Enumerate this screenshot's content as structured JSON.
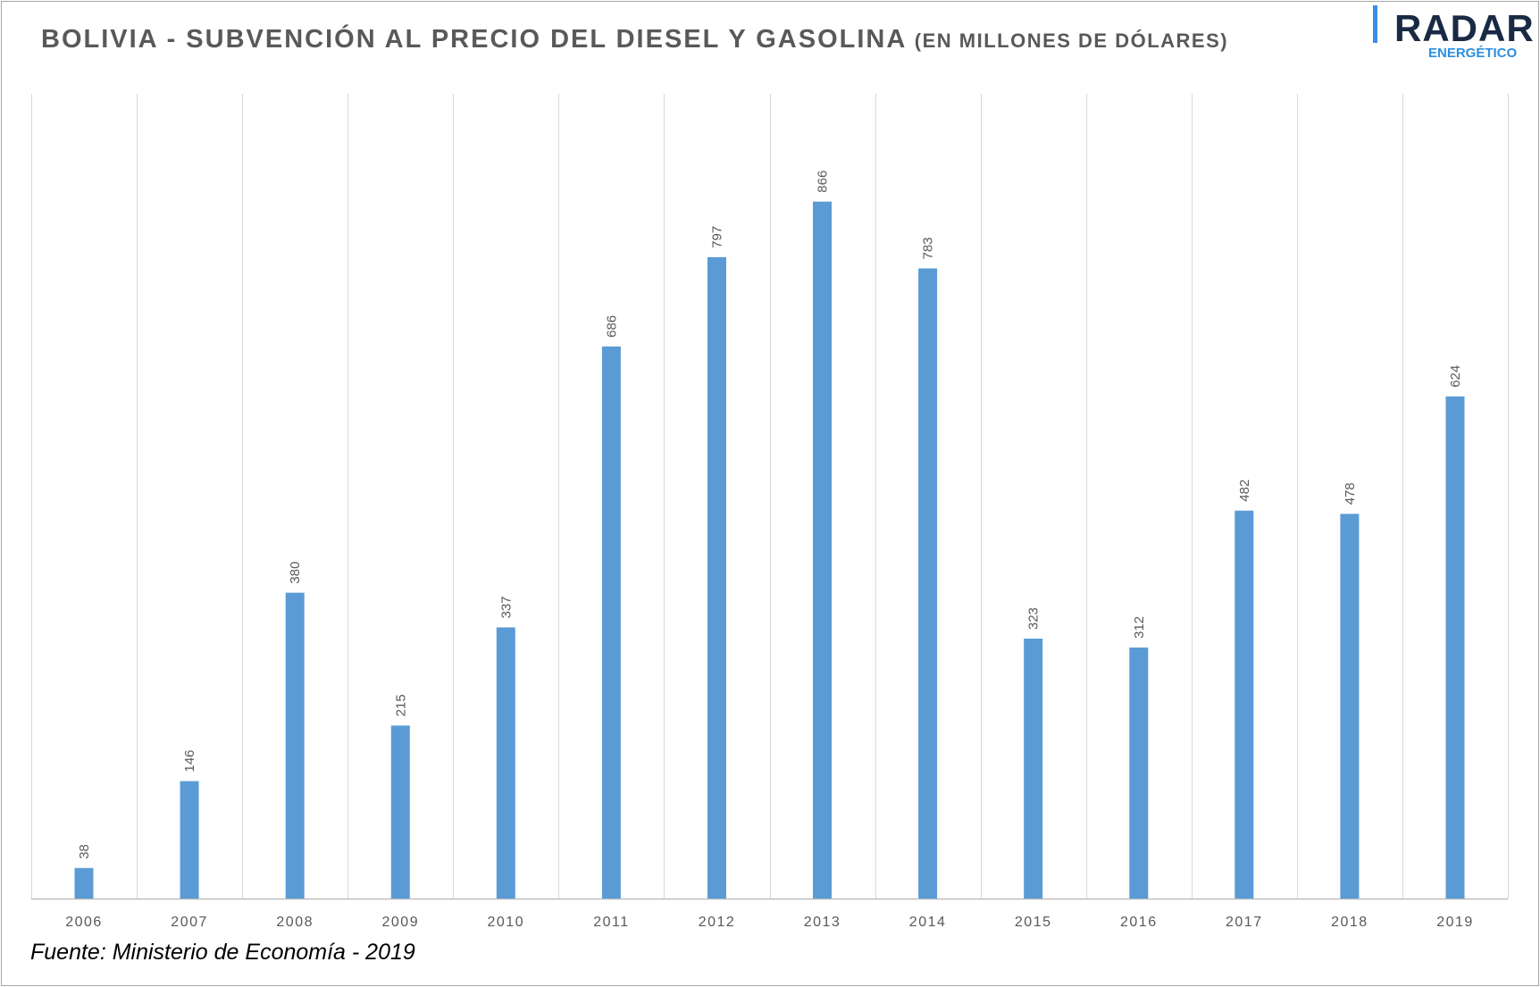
{
  "title": {
    "main": "BOLIVIA - SUBVENCIÓN AL PRECIO DEL DIESEL Y GASOLINA",
    "unit": "(EN MILLONES DE DÓLARES)"
  },
  "logo": {
    "brand": "RADAR",
    "sub": "ENERGÉTICO"
  },
  "source": "Fuente: Ministerio de Economía - 2019",
  "colors": {
    "bar": "#5b9bd5",
    "gridline": "#d9d9d9",
    "axis": "#bfbfbf",
    "label": "#595959"
  },
  "chart_data": {
    "type": "bar",
    "title": "BOLIVIA - SUBVENCIÓN AL PRECIO DEL DIESEL Y GASOLINA (EN MILLONES DE DÓLARES)",
    "xlabel": "",
    "ylabel": "",
    "categories": [
      "2006",
      "2007",
      "2008",
      "2009",
      "2010",
      "2011",
      "2012",
      "2013",
      "2014",
      "2015",
      "2016",
      "2017",
      "2018",
      "2019"
    ],
    "values": [
      38,
      146,
      380,
      215,
      337,
      686,
      797,
      866,
      783,
      323,
      312,
      482,
      478,
      624
    ],
    "ylim": [
      0,
      1000
    ],
    "data_labels": true,
    "data_label_rotation": "vertical",
    "grid": "vertical",
    "legend": "none"
  }
}
